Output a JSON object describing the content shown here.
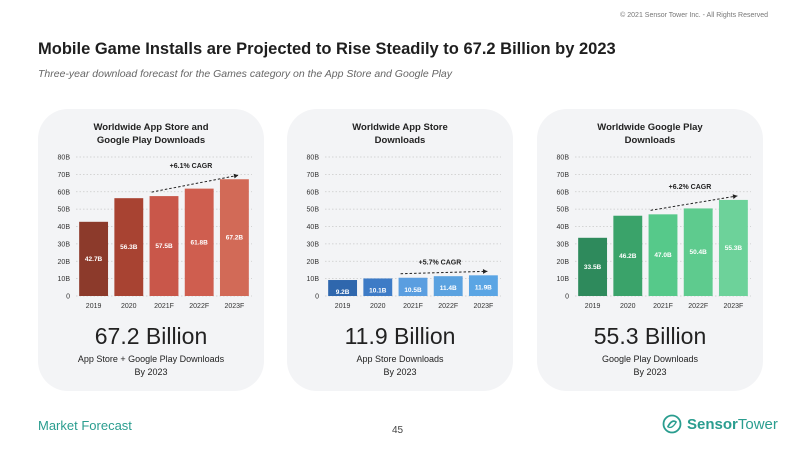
{
  "copyright": "© 2021 Sensor Tower Inc. - All Rights Reserved",
  "title": "Mobile Game Installs are Projected to Rise Steadily to 67.2 Billion by 2023",
  "subtitle": "Three-year download forecast for the Games category on the App Store and Google Play",
  "footer": {
    "section": "Market Forecast",
    "page_number": "45",
    "brand_part1": "Sensor",
    "brand_part2": "Tower"
  },
  "colors": {
    "card_bg": "#f3f4f6",
    "combined": [
      "#8c3a2b",
      "#a84332",
      "#c9574a",
      "#cf5e4f",
      "#d26a57"
    ],
    "appstore": [
      "#2f67ad",
      "#3d7bc6",
      "#5a9ee0",
      "#5aa2e0",
      "#5aa5e4"
    ],
    "googleplay": [
      "#2e8a5c",
      "#3aa36a",
      "#56c98a",
      "#5ecb8e",
      "#6dd29a"
    ],
    "brand": "#2a9d8f"
  },
  "chart_data": [
    {
      "type": "bar",
      "title_line1": "Worldwide App Store and",
      "title_line2": "Google Play Downloads",
      "categories": [
        "2019",
        "2020",
        "2021F",
        "2022F",
        "2023F"
      ],
      "values": [
        42.7,
        56.3,
        57.5,
        61.8,
        67.2
      ],
      "value_labels": [
        "42.7B",
        "56.3B",
        "57.5B",
        "61.8B",
        "67.2B"
      ],
      "y_ticks": [
        "0",
        "10B",
        "20B",
        "30B",
        "40B",
        "50B",
        "60B",
        "70B",
        "80B"
      ],
      "ylim": [
        0,
        80
      ],
      "cagr_label": "+6.1% CAGR",
      "headline": "67.2 Billion",
      "caption_line1": "App Store + Google Play Downloads",
      "caption_line2": "By 2023"
    },
    {
      "type": "bar",
      "title_line1": "Worldwide App Store",
      "title_line2": "Downloads",
      "categories": [
        "2019",
        "2020",
        "2021F",
        "2022F",
        "2023F"
      ],
      "values": [
        9.2,
        10.1,
        10.5,
        11.4,
        11.9
      ],
      "value_labels": [
        "9.2B",
        "10.1B",
        "10.5B",
        "11.4B",
        "11.9B"
      ],
      "y_ticks": [
        "0",
        "10B",
        "20B",
        "30B",
        "40B",
        "50B",
        "60B",
        "70B",
        "80B"
      ],
      "ylim": [
        0,
        80
      ],
      "cagr_label": "+5.7% CAGR",
      "headline": "11.9 Billion",
      "caption_line1": "App Store Downloads",
      "caption_line2": "By 2023"
    },
    {
      "type": "bar",
      "title_line1": "Worldwide Google Play",
      "title_line2": "Downloads",
      "categories": [
        "2019",
        "2020",
        "2021F",
        "2022F",
        "2023F"
      ],
      "values": [
        33.5,
        46.2,
        47.0,
        50.4,
        55.3
      ],
      "value_labels": [
        "33.5B",
        "46.2B",
        "47.0B",
        "50.4B",
        "55.3B"
      ],
      "y_ticks": [
        "0",
        "10B",
        "20B",
        "30B",
        "40B",
        "50B",
        "60B",
        "70B",
        "80B"
      ],
      "ylim": [
        0,
        80
      ],
      "cagr_label": "+6.2% CAGR",
      "headline": "55.3 Billion",
      "caption_line1": "Google Play Downloads",
      "caption_line2": "By 2023"
    }
  ]
}
